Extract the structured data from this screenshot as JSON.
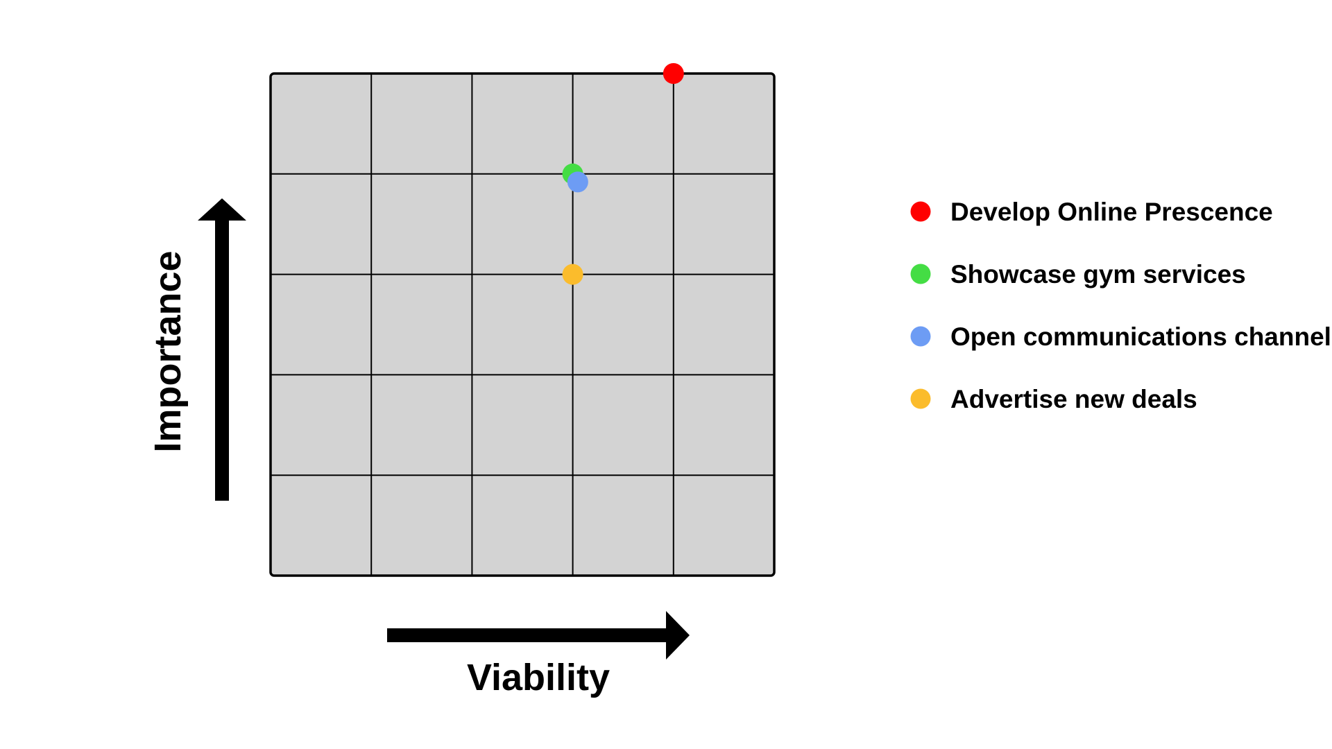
{
  "chart_data": {
    "type": "scatter",
    "title": "",
    "xlabel": "Viability",
    "ylabel": "Importance",
    "xlim": [
      0,
      5
    ],
    "ylim": [
      0,
      5
    ],
    "grid": true,
    "legend_position": "right",
    "plot_background": "#d3d3d3",
    "series": [
      {
        "name": "Develop Online Prescence",
        "color": "#ff0000",
        "x": 4.0,
        "y": 5.0
      },
      {
        "name": "Showcase gym services",
        "color": "#44dd44",
        "x": 3.0,
        "y": 4.0
      },
      {
        "name": "Open communications channel",
        "color": "#6d9cf4",
        "x": 3.05,
        "y": 3.92
      },
      {
        "name": "Advertise new deals",
        "color": "#fbbc2c",
        "x": 3.0,
        "y": 3.0
      }
    ]
  }
}
